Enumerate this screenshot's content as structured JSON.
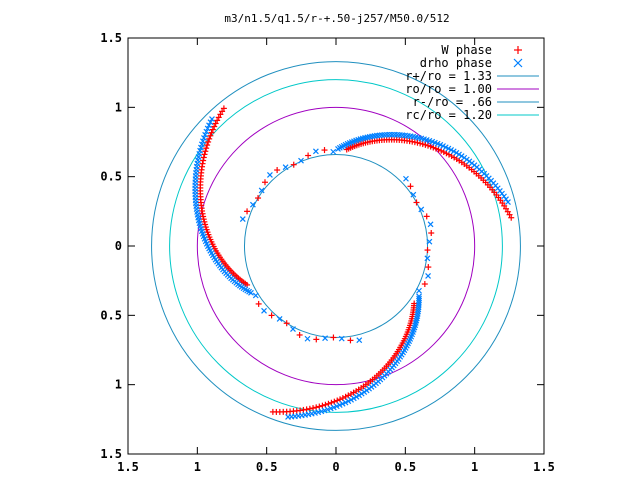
{
  "chart_data": {
    "type": "scatter",
    "title": "m3/n1.5/q1.5/r-+.50-j257/M50.0/512",
    "xlim": [
      -1.5,
      1.5
    ],
    "ylim": [
      -1.5,
      1.5
    ],
    "x_ticks": [
      -1.5,
      -1,
      -0.5,
      0,
      0.5,
      1,
      1.5
    ],
    "y_ticks": [
      -1.5,
      -1,
      -0.5,
      0,
      0.5,
      1,
      1.5
    ],
    "x_tick_labels": [
      "1.5",
      "1",
      "0.5",
      "0",
      "0.5",
      "1",
      "1.5"
    ],
    "y_tick_labels": [
      "1.5",
      "1",
      "0.5",
      "0",
      "0.5",
      "1",
      "1.5"
    ],
    "grid": false,
    "legend_position": "top-right",
    "series": [
      {
        "name": "W phase",
        "marker": "plus",
        "color": "#ff0000"
      },
      {
        "name": "drho phase",
        "marker": "cross",
        "color": "#0080ff"
      }
    ],
    "circles": [
      {
        "name": "r+/ro = 1.33",
        "radius": 1.33,
        "color": "#1f8fbf"
      },
      {
        "name": "ro/ro = 1.00",
        "radius": 1.0,
        "color": "#a000c0"
      },
      {
        "name": "r-/ro = .66",
        "radius": 0.66,
        "color": "#1f8fbf"
      },
      {
        "name": "rc/ro = 1.20",
        "radius": 1.2,
        "color": "#00c8c8"
      }
    ]
  }
}
